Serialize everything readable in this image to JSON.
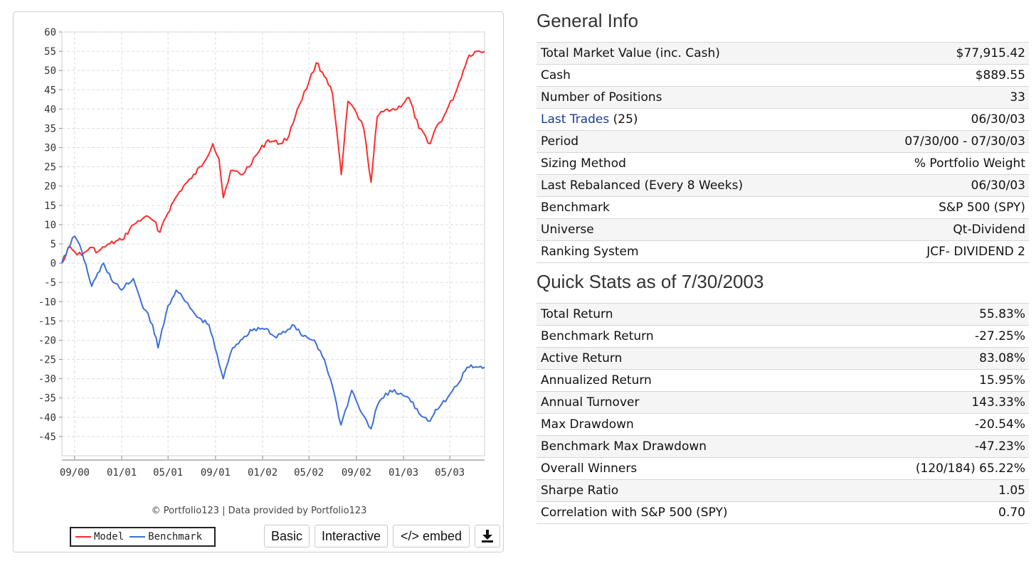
{
  "chart": {
    "credit": "© Portfolio123 | Data provided by Portfolio123",
    "legend": [
      {
        "label": "Model",
        "color": "#ff2b2b"
      },
      {
        "label": "Benchmark",
        "color": "#3c6fd8"
      }
    ],
    "buttons": {
      "basic": "Basic",
      "interactive": "Interactive",
      "embed": "</> embed",
      "download_icon": "download-icon"
    }
  },
  "chart_data": {
    "type": "line",
    "title": "",
    "xlabel": "",
    "ylabel": "",
    "ylim": [
      -50,
      60
    ],
    "xlim": [
      "2000-07-30",
      "2003-07-30"
    ],
    "grid": true,
    "legend_position": "bottom-left",
    "x_ticks": [
      "09/00",
      "01/01",
      "05/01",
      "09/01",
      "01/02",
      "05/02",
      "09/02",
      "01/03",
      "05/03"
    ],
    "y_ticks": [
      60,
      55,
      50,
      45,
      40,
      35,
      30,
      25,
      20,
      15,
      10,
      5,
      0,
      -5,
      -10,
      -15,
      -20,
      -25,
      -30,
      -35,
      -40,
      -45
    ],
    "series": [
      {
        "name": "Model",
        "color": "#ff2b2b",
        "points": [
          [
            "2000-07-30",
            0
          ],
          [
            "2000-08-15",
            4
          ],
          [
            "2000-09-01",
            3
          ],
          [
            "2000-09-20",
            2
          ],
          [
            "2000-10-10",
            4
          ],
          [
            "2000-11-01",
            3
          ],
          [
            "2000-12-01",
            5
          ],
          [
            "2001-01-01",
            6
          ],
          [
            "2001-02-01",
            10
          ],
          [
            "2001-03-01",
            12
          ],
          [
            "2001-03-25",
            11
          ],
          [
            "2001-04-10",
            8
          ],
          [
            "2001-04-20",
            11
          ],
          [
            "2001-05-15",
            16
          ],
          [
            "2001-06-10",
            20
          ],
          [
            "2001-07-01",
            22
          ],
          [
            "2001-08-01",
            26
          ],
          [
            "2001-08-25",
            31
          ],
          [
            "2001-09-10",
            27
          ],
          [
            "2001-09-21",
            17
          ],
          [
            "2001-10-10",
            24
          ],
          [
            "2001-11-10",
            23
          ],
          [
            "2001-12-15",
            28
          ],
          [
            "2002-01-15",
            32
          ],
          [
            "2002-02-15",
            31
          ],
          [
            "2002-03-10",
            33
          ],
          [
            "2002-04-01",
            40
          ],
          [
            "2002-05-01",
            47
          ],
          [
            "2002-05-20",
            52
          ],
          [
            "2002-06-15",
            48
          ],
          [
            "2002-07-01",
            44
          ],
          [
            "2002-07-24",
            23
          ],
          [
            "2002-08-10",
            42
          ],
          [
            "2002-09-01",
            39
          ],
          [
            "2002-09-20",
            35
          ],
          [
            "2002-10-09",
            21
          ],
          [
            "2002-10-25",
            38
          ],
          [
            "2002-11-20",
            40
          ],
          [
            "2002-12-15",
            40
          ],
          [
            "2003-01-15",
            43
          ],
          [
            "2003-02-10",
            35
          ],
          [
            "2003-03-11",
            31
          ],
          [
            "2003-03-25",
            35
          ],
          [
            "2003-04-15",
            38
          ],
          [
            "2003-05-15",
            44
          ],
          [
            "2003-06-05",
            50
          ],
          [
            "2003-06-20",
            54
          ],
          [
            "2003-07-10",
            55
          ],
          [
            "2003-07-30",
            55
          ]
        ]
      },
      {
        "name": "Benchmark",
        "color": "#3c6fd8",
        "points": [
          [
            "2000-07-30",
            0
          ],
          [
            "2000-08-15",
            4
          ],
          [
            "2000-09-01",
            7
          ],
          [
            "2000-09-20",
            3
          ],
          [
            "2000-10-15",
            -6
          ],
          [
            "2000-11-15",
            0
          ],
          [
            "2000-12-10",
            -5
          ],
          [
            "2001-01-01",
            -7
          ],
          [
            "2001-01-31",
            -4
          ],
          [
            "2001-02-20",
            -10
          ],
          [
            "2001-03-22",
            -16
          ],
          [
            "2001-04-05",
            -22
          ],
          [
            "2001-05-01",
            -11
          ],
          [
            "2001-05-22",
            -7
          ],
          [
            "2001-06-15",
            -10
          ],
          [
            "2001-07-15",
            -14
          ],
          [
            "2001-08-15",
            -16
          ],
          [
            "2001-09-21",
            -30
          ],
          [
            "2001-10-15",
            -22
          ],
          [
            "2001-11-15",
            -19
          ],
          [
            "2001-12-10",
            -17
          ],
          [
            "2002-01-10",
            -17
          ],
          [
            "2002-01-31",
            -19
          ],
          [
            "2002-03-01",
            -18
          ],
          [
            "2002-03-19",
            -16
          ],
          [
            "2002-04-15",
            -19
          ],
          [
            "2002-05-15",
            -20
          ],
          [
            "2002-06-10",
            -25
          ],
          [
            "2002-07-01",
            -32
          ],
          [
            "2002-07-23",
            -42
          ],
          [
            "2002-08-20",
            -33
          ],
          [
            "2002-09-15",
            -39
          ],
          [
            "2002-10-09",
            -43
          ],
          [
            "2002-10-25",
            -37
          ],
          [
            "2002-11-27",
            -33
          ],
          [
            "2002-12-20",
            -34
          ],
          [
            "2003-01-15",
            -35
          ],
          [
            "2003-02-10",
            -39
          ],
          [
            "2003-03-11",
            -41
          ],
          [
            "2003-03-25",
            -38
          ],
          [
            "2003-04-25",
            -35
          ],
          [
            "2003-05-25",
            -31
          ],
          [
            "2003-06-15",
            -27
          ],
          [
            "2003-07-10",
            -27
          ],
          [
            "2003-07-30",
            -27
          ]
        ]
      }
    ]
  },
  "general_info": {
    "title": "General Info",
    "rows": [
      {
        "label": "Total Market Value (inc. Cash)",
        "value": "$77,915.42"
      },
      {
        "label": "Cash",
        "value": "$889.55"
      },
      {
        "label": "Number of Positions",
        "value": "33"
      },
      {
        "label": "Last Trades",
        "count": "(25)",
        "value": "06/30/03"
      },
      {
        "label": "Period",
        "value": "07/30/00 - 07/30/03"
      },
      {
        "label": "Sizing Method",
        "value": "% Portfolio Weight"
      },
      {
        "label": "Last Rebalanced (Every 8 Weeks)",
        "value": "06/30/03"
      },
      {
        "label": "Benchmark",
        "value": "S&P 500 (SPY)"
      },
      {
        "label": "Universe",
        "value": "Qt-Dividend"
      },
      {
        "label": "Ranking System",
        "value": "JCF- DIVIDEND 2"
      }
    ]
  },
  "quick_stats": {
    "title": "Quick Stats as of 7/30/2003",
    "rows": [
      {
        "label": "Total Return",
        "value": "55.83%"
      },
      {
        "label": "Benchmark Return",
        "value": "-27.25%"
      },
      {
        "label": "Active Return",
        "value": "83.08%"
      },
      {
        "label": "Annualized Return",
        "value": "15.95%"
      },
      {
        "label": "Annual Turnover",
        "value": "143.33%"
      },
      {
        "label": "Max Drawdown",
        "value": "-20.54%"
      },
      {
        "label": "Benchmark Max Drawdown",
        "value": "-47.23%"
      },
      {
        "label": "Overall Winners",
        "value": "(120/184) 65.22%"
      },
      {
        "label": "Sharpe Ratio",
        "value": "1.05"
      },
      {
        "label": "Correlation with S&P 500 (SPY)",
        "value": "0.70"
      }
    ]
  }
}
